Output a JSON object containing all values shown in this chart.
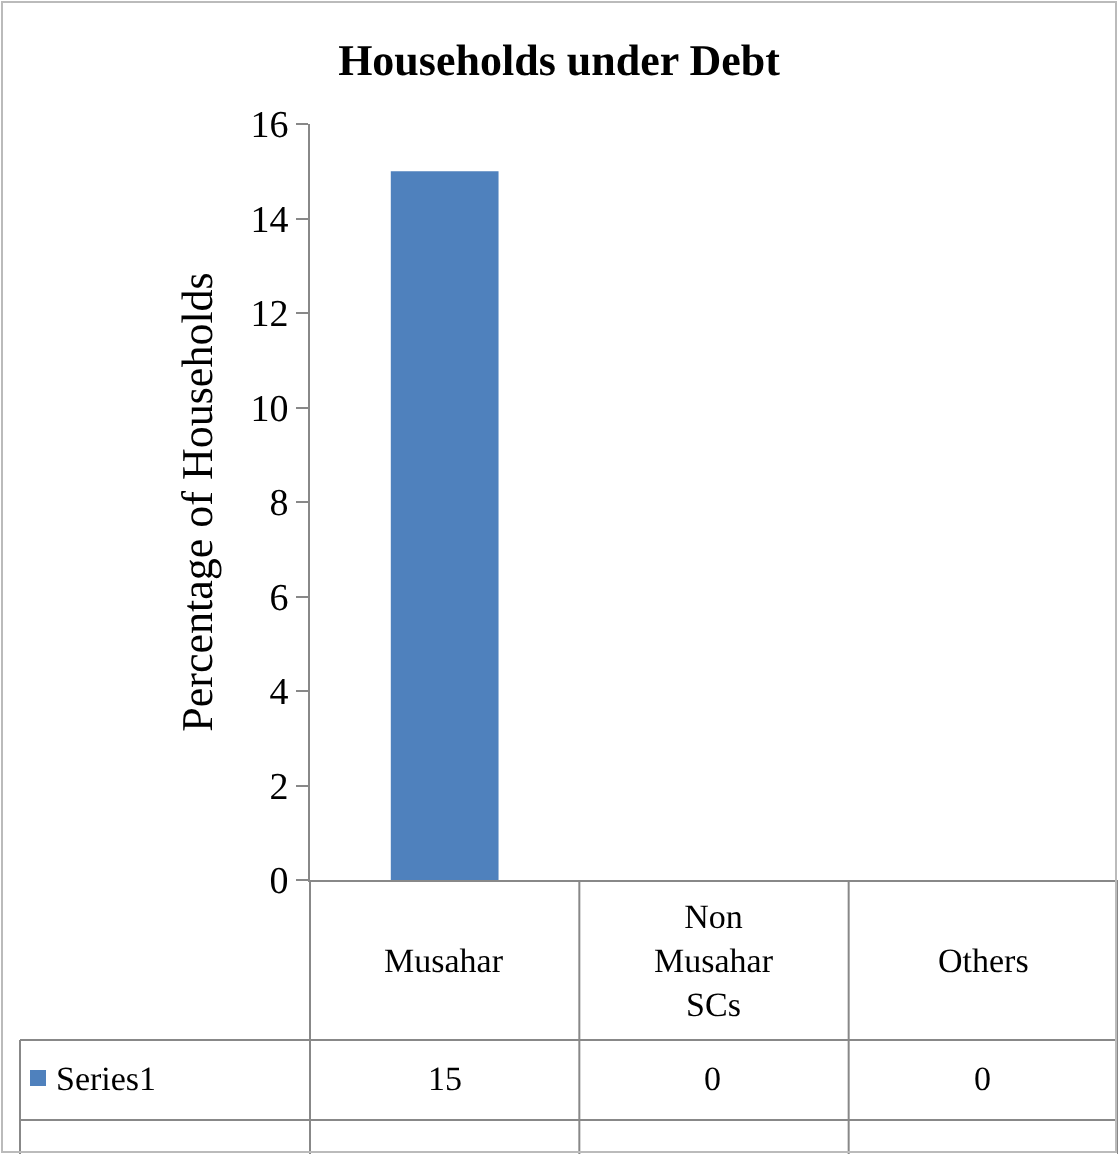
{
  "chart_data": {
    "type": "bar",
    "title": "Households under Debt",
    "ylabel": "Percentage of Households",
    "categories": [
      "Musahar",
      "Non Musahar SCs",
      "Others"
    ],
    "series": [
      {
        "name": "Series1",
        "color": "#4f81bd",
        "values": [
          15,
          0,
          0
        ]
      }
    ],
    "ylim": [
      0,
      16
    ],
    "yticks": [
      0,
      2,
      4,
      6,
      8,
      10,
      12,
      14,
      16
    ],
    "legend": "bottom left",
    "data_labels": true
  }
}
